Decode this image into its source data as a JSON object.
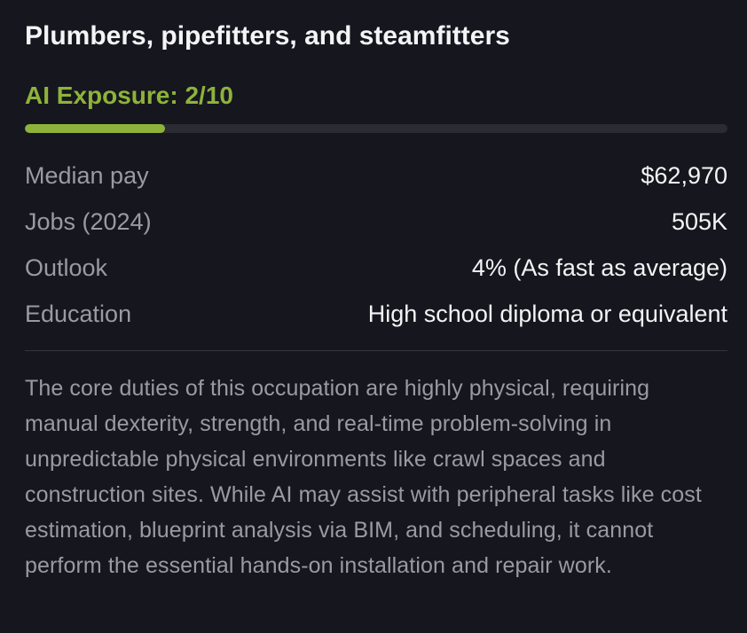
{
  "title": "Plumbers, pipefitters, and steamfitters",
  "exposure": {
    "label": "AI Exposure: 2/10",
    "score": 2,
    "max": 10,
    "color": "#8db33a"
  },
  "stats": [
    {
      "label": "Median pay",
      "value": "$62,970"
    },
    {
      "label": "Jobs (2024)",
      "value": "505K"
    },
    {
      "label": "Outlook",
      "value": "4% (As fast as average)"
    },
    {
      "label": "Education",
      "value": "High school diploma or equivalent"
    }
  ],
  "description": "The core duties of this occupation are highly physical, requiring manual dexterity, strength, and real-time problem-solving in unpredictable physical environments like crawl spaces and construction sites. While AI may assist with peripheral tasks like cost estimation, blueprint analysis via BIM, and scheduling, it cannot perform the essential hands-on installation and repair work."
}
